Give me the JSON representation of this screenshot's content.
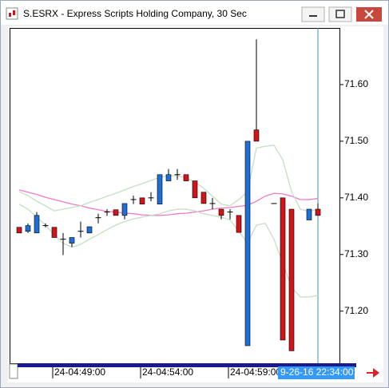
{
  "window_title": "S.ESRX - Express Scripts Holding Company, 30 Sec",
  "chart_data": {
    "type": "candlestick",
    "up_color": "#1f6fd6",
    "down_color": "#d0141a",
    "flat_color": "#000000",
    "ylim": [
      71.108,
      71.7
    ],
    "yticks": [
      {
        "value": 71.6,
        "label": "71.60"
      },
      {
        "value": 71.5,
        "label": "71.50"
      },
      {
        "value": 71.4,
        "label": "71.40"
      },
      {
        "value": 71.3,
        "label": "71.30"
      },
      {
        "value": 71.2,
        "label": "71.20"
      }
    ],
    "xticks": [
      {
        "value": 4,
        "label": "24-04:49:00"
      },
      {
        "value": 14,
        "label": "24-04:54:00"
      },
      {
        "value": 24,
        "label": "24-04:59:00"
      }
    ],
    "cursor": {
      "value": 34,
      "label": "9-26-16 22:34:00"
    },
    "open": [
      71.348,
      71.341,
      71.338,
      71.351,
      71.348,
      71.327,
      71.32,
      71.341,
      71.338,
      71.365,
      71.375,
      71.379,
      71.369,
      71.397,
      71.4,
      71.4,
      71.389,
      71.43,
      71.441,
      71.441,
      71.43,
      71.41,
      71.39,
      71.38,
      71.375,
      71.369,
      71.139,
      71.52,
      null,
      71.39,
      71.4,
      71.38,
      null,
      71.361,
      71.38
    ],
    "high": [
      71.348,
      71.355,
      71.375,
      71.355,
      71.348,
      71.338,
      71.33,
      71.358,
      71.349,
      71.372,
      71.38,
      71.379,
      71.39,
      71.404,
      71.4,
      71.41,
      71.441,
      71.451,
      71.451,
      71.441,
      71.43,
      71.41,
      71.4,
      71.38,
      71.38,
      71.369,
      71.5,
      71.68,
      null,
      71.39,
      71.4,
      71.38,
      null,
      71.38,
      71.39
    ],
    "low": [
      71.338,
      71.338,
      71.338,
      71.348,
      71.33,
      71.299,
      71.313,
      71.33,
      71.338,
      71.355,
      71.368,
      71.369,
      71.362,
      71.389,
      71.389,
      71.394,
      71.389,
      71.43,
      71.432,
      71.43,
      71.4,
      71.39,
      71.38,
      71.362,
      71.362,
      71.339,
      71.139,
      71.5,
      null,
      71.39,
      71.149,
      71.13,
      null,
      71.361,
      71.369
    ],
    "close": [
      71.338,
      71.351,
      71.369,
      71.351,
      71.33,
      71.327,
      71.33,
      71.341,
      71.349,
      71.365,
      71.375,
      71.369,
      71.39,
      71.397,
      71.389,
      71.4,
      71.441,
      71.441,
      71.441,
      71.43,
      71.4,
      71.39,
      71.39,
      71.369,
      71.375,
      71.339,
      71.5,
      71.5,
      null,
      71.39,
      71.149,
      71.13,
      null,
      71.38,
      71.369
    ],
    "lines": [
      {
        "color": "#f07ac8",
        "values": [
          71.414,
          71.41,
          71.406,
          71.401,
          71.397,
          71.393,
          71.389,
          71.386,
          71.382,
          71.379,
          71.376,
          71.375,
          71.373,
          71.372,
          71.37,
          71.369,
          71.369,
          71.37,
          71.372,
          71.373,
          71.375,
          71.377,
          71.38,
          71.382,
          71.383,
          71.385,
          71.387,
          71.394,
          71.403,
          71.408,
          71.407,
          71.403,
          71.397,
          71.397,
          71.399
        ]
      },
      {
        "color": "#c4dfc4",
        "values": [
          71.411,
          71.404,
          71.394,
          71.386,
          71.377,
          71.38,
          71.383,
          71.386,
          71.392,
          71.397,
          71.403,
          71.408,
          71.414,
          71.42,
          71.425,
          71.431,
          71.436,
          71.439,
          71.439,
          71.435,
          71.428,
          71.417,
          71.403,
          71.389,
          71.386,
          71.397,
          71.411,
          71.488,
          71.491,
          71.493,
          71.467,
          71.411,
          71.38,
          71.376,
          71.38
        ]
      },
      {
        "color": "#c4dfc4",
        "values": [
          71.389,
          71.38,
          71.366,
          71.352,
          71.334,
          71.32,
          71.313,
          71.318,
          71.327,
          71.335,
          71.344,
          71.352,
          71.358,
          71.363,
          71.366,
          71.369,
          71.372,
          71.377,
          71.38,
          71.38,
          71.377,
          71.372,
          71.369,
          71.366,
          71.361,
          71.341,
          71.32,
          71.352,
          71.355,
          71.327,
          71.285,
          71.242,
          71.225,
          71.225,
          71.228
        ]
      }
    ]
  }
}
